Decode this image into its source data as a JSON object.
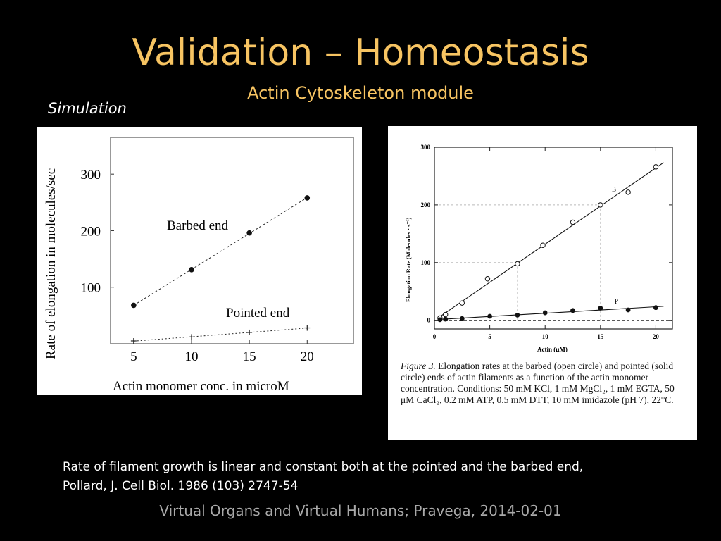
{
  "slide": {
    "title": "Validation – Homeostasis",
    "subtitle": "Actin Cytoskeleton module",
    "sim_label": "Simulation",
    "caption_line1": "Rate of filament growth is linear and constant both at the pointed and the barbed end,",
    "caption_line2": "Pollard, J. Cell Biol. 1986 (103) 2747-54",
    "footer": "Virtual Organs and Virtual Humans; Pravega, 2014-02-01",
    "title_color": "#f7c462"
  },
  "chart_data": [
    {
      "type": "scatter",
      "ylabel": "Rate of elongation in molecules/sec",
      "xlabel": "Actin monomer conc. in microM",
      "xlim": [
        3,
        24
      ],
      "ylim": [
        0,
        365
      ],
      "xticks": [
        5,
        10,
        15,
        20
      ],
      "yticks": [
        100,
        200,
        300
      ],
      "series": [
        {
          "name": "Barbed end",
          "x": [
            5,
            10,
            15,
            20
          ],
          "y": [
            68,
            131,
            196,
            258
          ],
          "marker": "dot"
        },
        {
          "name": "Pointed end",
          "x": [
            5,
            10,
            15,
            20
          ],
          "y": [
            5,
            12,
            20,
            28
          ],
          "marker": "plus"
        }
      ]
    },
    {
      "type": "scatter",
      "ylabel": "Elongation Rate (Molecules · s⁻¹)",
      "xlabel": "Actin (μM)",
      "xlim": [
        0,
        21.5
      ],
      "ylim": [
        -15,
        300
      ],
      "xticks": [
        0,
        5,
        10,
        15,
        20
      ],
      "yticks": [
        0,
        100,
        200,
        300
      ],
      "series": [
        {
          "name": "B",
          "marker": "open-circle",
          "x": [
            0.5,
            1,
            2.5,
            4.8,
            7.5,
            9.8,
            12.5,
            15,
            17.5,
            20
          ],
          "y": [
            4,
            10,
            30,
            72,
            98,
            130,
            170,
            200,
            222,
            266
          ]
        },
        {
          "name": "P",
          "marker": "solid-circle",
          "x": [
            0.5,
            1,
            2.5,
            5,
            7.5,
            10,
            12.5,
            15,
            17.5,
            20
          ],
          "y": [
            1,
            2,
            3,
            7,
            9,
            13,
            17,
            21,
            18,
            22
          ]
        }
      ],
      "figure_caption_label": "Figure 3.",
      "figure_caption": " Elongation rates at the barbed (open circle) and pointed (solid circle) ends of actin filaments as a function of the actin monomer concentration. Conditions: 50 mM KCl, 1 mM MgCl₂, 1 mM EGTA, 50 μM CaCl₂, 0.2 mM ATP, 0.5 mM DTT, 10 mM imidazole (pH 7), 22°C."
    }
  ]
}
